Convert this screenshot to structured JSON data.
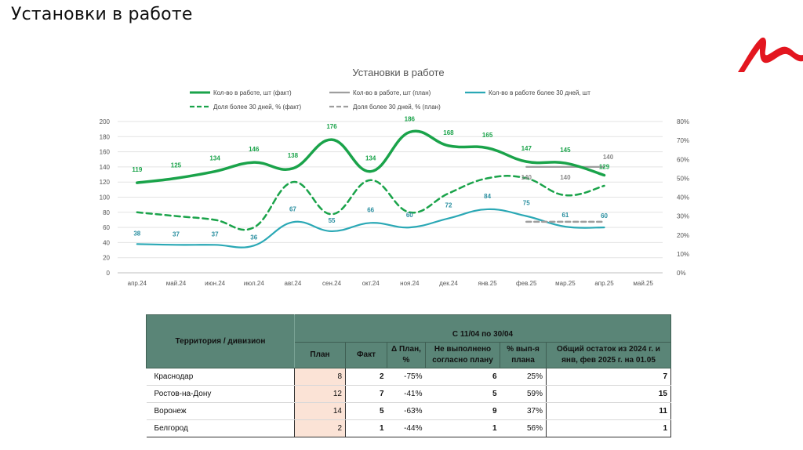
{
  "slide": {
    "title": "Установки в работе"
  },
  "logo": {
    "icon": "brand-m-logo-icon",
    "color": "#e3161f"
  },
  "chart_data": {
    "type": "line",
    "title": "Установки в работе",
    "categories": [
      "апр.24",
      "май.24",
      "июн.24",
      "июл.24",
      "авг.24",
      "сен.24",
      "окт.24",
      "ноя.24",
      "дек.24",
      "янв.25",
      "фев.25",
      "мар.25",
      "апр.25",
      "май.25"
    ],
    "y_left": {
      "min": 0,
      "max": 200,
      "step": 20,
      "ticks": [
        "0",
        "20",
        "40",
        "60",
        "80",
        "100",
        "120",
        "140",
        "160",
        "180",
        "200"
      ]
    },
    "y_right": {
      "min": 0,
      "max": 80,
      "step": 10,
      "ticks": [
        "0%",
        "10%",
        "20%",
        "30%",
        "40%",
        "50%",
        "60%",
        "70%",
        "80%"
      ]
    },
    "grid": true,
    "legend_position": "top",
    "series": [
      {
        "name": "Кол-во в работе, шт (факт)",
        "axis": "left",
        "style": "solid",
        "color": "#1aa34a",
        "values": [
          119,
          125,
          134,
          146,
          138,
          176,
          134,
          186,
          168,
          165,
          147,
          145,
          129,
          null
        ],
        "labels": [
          "119",
          "125",
          "134",
          "146",
          "138",
          "176",
          "134",
          "186",
          "168",
          "165",
          "147",
          "145",
          "129",
          ""
        ]
      },
      {
        "name": "Кол-во в работе, шт (план)",
        "axis": "left",
        "style": "solid",
        "color": "#9e9e9e",
        "values": [
          null,
          null,
          null,
          null,
          null,
          null,
          null,
          null,
          null,
          null,
          140,
          140,
          140,
          null
        ],
        "labels": [
          "",
          "",
          "",
          "",
          "",
          "",
          "",
          "",
          "",
          "",
          "140",
          "140",
          "140",
          ""
        ]
      },
      {
        "name": "Кол-во в работе более 30 дней, шт",
        "axis": "left",
        "style": "solid",
        "color": "#2aa8b5",
        "values": [
          38,
          37,
          37,
          36,
          67,
          55,
          66,
          60,
          72,
          84,
          75,
          61,
          60,
          null
        ],
        "labels": [
          "38",
          "37",
          "37",
          "36",
          "67",
          "55",
          "66",
          "60",
          "72",
          "84",
          "75",
          "61",
          "60",
          ""
        ]
      },
      {
        "name": "Доля более 30 дней, % (факт)",
        "axis": "right",
        "style": "dashed",
        "color": "#1aa34a",
        "values": [
          32,
          30,
          28,
          24,
          48,
          31,
          49,
          32,
          42,
          50,
          50,
          41,
          46,
          null
        ]
      },
      {
        "name": "Доля более 30 дней, % (план)",
        "axis": "right",
        "style": "dashed",
        "color": "#9e9e9e",
        "values": [
          null,
          null,
          null,
          null,
          null,
          null,
          null,
          null,
          null,
          null,
          27,
          27,
          27,
          null
        ]
      }
    ]
  },
  "table": {
    "header_territory": "Территория / дивизион",
    "header_period": "С 11/04 по 30/04",
    "columns": [
      "План",
      "Факт",
      "Δ План, %",
      "Не выполнено согласно плану",
      "% вып-я плана",
      "Общий остаток из 2024 г. и янв, фев 2025 г. на 01.05"
    ],
    "rows": [
      {
        "territory": "Краснодар",
        "plan": "8",
        "fact": "2",
        "delta": "-75%",
        "not_done": "6",
        "pct": "25%",
        "rest": "7"
      },
      {
        "territory": "Ростов-на-Дону",
        "plan": "12",
        "fact": "7",
        "delta": "-41%",
        "not_done": "5",
        "pct": "59%",
        "rest": "15"
      },
      {
        "territory": "Воронеж",
        "plan": "14",
        "fact": "5",
        "delta": "-63%",
        "not_done": "9",
        "pct": "37%",
        "rest": "11"
      },
      {
        "territory": "Белгород",
        "plan": "2",
        "fact": "1",
        "delta": "-44%",
        "not_done": "1",
        "pct": "56%",
        "rest": "1"
      }
    ]
  }
}
